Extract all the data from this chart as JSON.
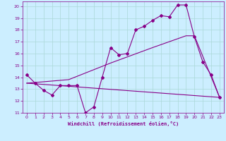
{
  "xlabel": "Windchill (Refroidissement éolien,°C)",
  "background_color": "#cceeff",
  "grid_color": "#aad8d8",
  "line_color": "#880088",
  "xlim": [
    -0.5,
    23.5
  ],
  "ylim": [
    11,
    20.4
  ],
  "xticks": [
    0,
    1,
    2,
    3,
    4,
    5,
    6,
    7,
    8,
    9,
    10,
    11,
    12,
    13,
    14,
    15,
    16,
    17,
    18,
    19,
    20,
    21,
    22,
    23
  ],
  "yticks": [
    11,
    12,
    13,
    14,
    15,
    16,
    17,
    18,
    19,
    20
  ],
  "series1_x": [
    0,
    1,
    2,
    3,
    4,
    5,
    6,
    7,
    8,
    9,
    10,
    11,
    12,
    13,
    14,
    15,
    16,
    17,
    18,
    19,
    20,
    21,
    22,
    23
  ],
  "series1_y": [
    14.2,
    13.5,
    12.9,
    12.5,
    13.3,
    13.3,
    13.3,
    11.0,
    11.5,
    14.0,
    16.5,
    15.9,
    16.0,
    18.0,
    18.3,
    18.8,
    19.2,
    19.1,
    20.1,
    20.1,
    17.4,
    15.3,
    14.2,
    12.3
  ],
  "series2_x": [
    0,
    23
  ],
  "series2_y": [
    13.5,
    12.3
  ],
  "series3_x": [
    0,
    5,
    10,
    15,
    19,
    20,
    23
  ],
  "series3_y": [
    13.5,
    13.8,
    15.2,
    16.5,
    17.5,
    17.5,
    12.3
  ]
}
